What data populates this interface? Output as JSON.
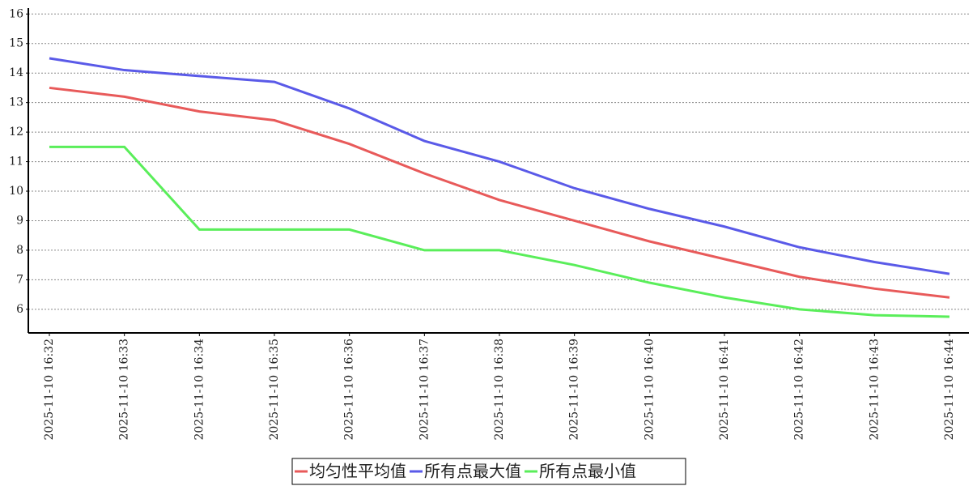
{
  "chart_data": {
    "type": "line",
    "categories": [
      "2025-11-10 16:32",
      "2025-11-10 16:33",
      "2025-11-10 16:34",
      "2025-11-10 16:35",
      "2025-11-10 16:36",
      "2025-11-10 16:37",
      "2025-11-10 16:38",
      "2025-11-10 16:39",
      "2025-11-10 16:40",
      "2025-11-10 16:41",
      "2025-11-10 16:42",
      "2025-11-10 16:43",
      "2025-11-10 16:44"
    ],
    "series": [
      {
        "name": "均匀性平均值",
        "color": "#e85a5a",
        "values": [
          13.5,
          13.2,
          12.7,
          12.4,
          11.6,
          10.6,
          9.7,
          9.0,
          8.3,
          7.7,
          7.1,
          6.7,
          6.4
        ]
      },
      {
        "name": "所有点最大值",
        "color": "#5a5ae8",
        "values": [
          14.5,
          14.1,
          13.9,
          13.7,
          12.8,
          11.7,
          11.0,
          10.1,
          9.4,
          8.8,
          8.1,
          7.6,
          7.2
        ]
      },
      {
        "name": "所有点最小值",
        "color": "#5aee5a",
        "values": [
          11.5,
          11.5,
          8.7,
          8.7,
          8.7,
          8.0,
          8.0,
          7.5,
          6.9,
          6.4,
          6.0,
          5.8,
          5.75
        ]
      }
    ],
    "ylim": [
      5.2,
      16.2
    ],
    "yticks": [
      6,
      7,
      8,
      9,
      10,
      11,
      12,
      13,
      14,
      15,
      16
    ],
    "grid": true
  }
}
